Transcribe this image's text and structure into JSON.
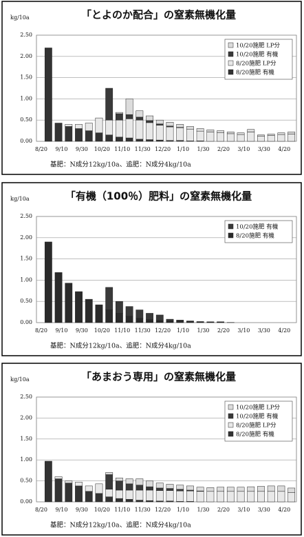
{
  "chart_data": [
    {
      "type": "bar",
      "stacked": true,
      "title": "「とよのか配合」の窒素無機化量",
      "y_label": "kg/10a",
      "note": "基肥：N成分12kg/10a、追肥：N成分4kg/10a",
      "legend": "upper right",
      "grid": true,
      "ylim": [
        0,
        2.5
      ],
      "yticks": [
        {
          "value": 0,
          "label": "0.00"
        },
        {
          "value": 0.5,
          "label": "0.50"
        },
        {
          "value": 1,
          "label": "1.00"
        },
        {
          "value": 1.5,
          "label": "1.50"
        },
        {
          "value": 2,
          "label": "2.00"
        },
        {
          "value": 2.5,
          "label": "2.50"
        }
      ],
      "categories": [
        "8/20",
        null,
        "9/10",
        null,
        "9/30",
        null,
        "10/20",
        null,
        "11/10",
        null,
        "11/30",
        null,
        "12/20",
        null,
        "1/10",
        null,
        "1/30",
        null,
        "2/20",
        null,
        "3/10",
        null,
        "3/30",
        null,
        "4/20"
      ],
      "series": [
        {
          "name": "10/20施肥 LP分",
          "color": "#dcdcdc",
          "values": [
            0,
            0,
            0,
            0,
            0,
            0,
            0,
            0.03,
            0.37,
            0.15,
            0.11,
            0.09,
            0.09,
            0.07,
            0.07,
            0.06,
            0.05,
            0.05,
            0.04,
            0.04,
            0.06,
            0.03,
            0.03,
            0.04,
            0.05
          ]
        },
        {
          "name": "10/20施肥 有機",
          "color": "#3a3a3a",
          "values": [
            0,
            0,
            0,
            0,
            0,
            0,
            0.75,
            0.15,
            0.1,
            0.07,
            0.05,
            0.03,
            0.02,
            0.01,
            0,
            0,
            0,
            0,
            0,
            0,
            0,
            0,
            0,
            0,
            0
          ]
        },
        {
          "name": "8/20施肥 LP分",
          "color": "#e8e8e8",
          "values": [
            0,
            0,
            0.05,
            0.1,
            0.18,
            0.35,
            0.35,
            0.4,
            0.45,
            0.45,
            0.4,
            0.35,
            0.32,
            0.3,
            0.27,
            0.23,
            0.22,
            0.2,
            0.18,
            0.16,
            0.22,
            0.12,
            0.14,
            0.16,
            0.17
          ]
        },
        {
          "name": "8/20施肥 有機",
          "color": "#333333",
          "values": [
            2.2,
            0.43,
            0.35,
            0.3,
            0.25,
            0.2,
            0.15,
            0.1,
            0.08,
            0.05,
            0.04,
            0.03,
            0.02,
            0.02,
            0.01,
            0.01,
            0,
            0,
            0,
            0,
            0,
            0,
            0,
            0,
            0
          ]
        }
      ]
    },
    {
      "type": "bar",
      "stacked": true,
      "title": "「有機（100％）肥料」の窒素無機化量",
      "y_label": "kg/10a",
      "note": "基肥：N成分12kg/10a、追肥：N成分4kg/10a",
      "legend": "upper right",
      "grid": true,
      "ylim": [
        0,
        2.5
      ],
      "yticks": [
        {
          "value": 0,
          "label": "0.00"
        },
        {
          "value": 0.5,
          "label": "0.50"
        },
        {
          "value": 1,
          "label": "1.00"
        },
        {
          "value": 1.5,
          "label": "1.50"
        },
        {
          "value": 2,
          "label": "2.00"
        },
        {
          "value": 2.5,
          "label": "2.50"
        }
      ],
      "categories": [
        "8/20",
        null,
        "9/10",
        null,
        "9/30",
        null,
        "10/20",
        null,
        "11/10",
        null,
        "11/30",
        null,
        "12/20",
        null,
        "1/10",
        null,
        "1/30",
        null,
        "2/20",
        null,
        "3/10",
        null,
        "3/30",
        null,
        "4/20"
      ],
      "series": [
        {
          "name": "10/20施肥 有機",
          "color": "#3a3a3a",
          "values": [
            0,
            0,
            0,
            0,
            0,
            0,
            0.53,
            0.28,
            0.23,
            0.2,
            0.15,
            0.13,
            0.04,
            0.03,
            0.02,
            0.01,
            0.01,
            0.01,
            0,
            0,
            0,
            0,
            0,
            0,
            0
          ]
        },
        {
          "name": "8/20施肥 有機",
          "color": "#2a2a2a",
          "values": [
            1.9,
            1.18,
            0.93,
            0.73,
            0.55,
            0.42,
            0.3,
            0.22,
            0.15,
            0.1,
            0.07,
            0.05,
            0.04,
            0.03,
            0.02,
            0.015,
            0.01,
            0.01,
            0.005,
            0,
            0,
            0,
            0,
            0,
            0
          ]
        }
      ]
    },
    {
      "type": "bar",
      "stacked": true,
      "title": "「あまおう専用」の窒素無機化量",
      "y_label": "kg/10a",
      "note": "基肥：N成分12kg/10a、追肥：N成分4kg/10a",
      "legend": "upper right",
      "grid": true,
      "ylim": [
        0,
        2.5
      ],
      "yticks": [
        {
          "value": 0,
          "label": "0.00"
        },
        {
          "value": 0.5,
          "label": "0.50"
        },
        {
          "value": 1,
          "label": "1.00"
        },
        {
          "value": 1.5,
          "label": "1.50"
        },
        {
          "value": 2,
          "label": "2.00"
        },
        {
          "value": 2.5,
          "label": "2.50"
        }
      ],
      "categories": [
        "8/20",
        null,
        "9/10",
        null,
        "9/30",
        null,
        "10/20",
        null,
        "11/10",
        null,
        "11/30",
        null,
        "12/20",
        null,
        "1/10",
        null,
        "1/30",
        null,
        "2/20",
        null,
        "3/10",
        null,
        "3/30",
        null,
        "4/20"
      ],
      "series": [
        {
          "name": "10/20施肥 LP分",
          "color": "#dcdcdc",
          "values": [
            0,
            0,
            0,
            0,
            0,
            0,
            0.05,
            0.07,
            0.12,
            0.15,
            0.14,
            0.12,
            0.1,
            0.1,
            0.1,
            0.09,
            0.09,
            0.1,
            0.1,
            0.1,
            0.11,
            0.12,
            0.13,
            0.13,
            0.11
          ]
        },
        {
          "name": "10/20施肥 有機",
          "color": "#3a3a3a",
          "values": [
            0,
            0,
            0,
            0,
            0,
            0,
            0.35,
            0.22,
            0.15,
            0.12,
            0.08,
            0.06,
            0.05,
            0.04,
            0.02,
            0.01,
            0,
            0,
            0,
            0,
            0,
            0,
            0,
            0,
            0
          ]
        },
        {
          "name": "8/20施肥 LP分",
          "color": "#e8e8e8",
          "values": [
            0,
            0.05,
            0.05,
            0.09,
            0.13,
            0.23,
            0.18,
            0.2,
            0.22,
            0.24,
            0.25,
            0.25,
            0.25,
            0.25,
            0.25,
            0.25,
            0.25,
            0.25,
            0.25,
            0.25,
            0.25,
            0.25,
            0.25,
            0.25,
            0.22
          ]
        },
        {
          "name": "8/20施肥 有機",
          "color": "#333333",
          "values": [
            0.97,
            0.55,
            0.45,
            0.38,
            0.25,
            0.2,
            0.12,
            0.08,
            0.06,
            0.04,
            0.03,
            0.02,
            0.02,
            0.01,
            0.01,
            0,
            0,
            0,
            0,
            0,
            0,
            0,
            0,
            0,
            0
          ]
        }
      ]
    }
  ]
}
